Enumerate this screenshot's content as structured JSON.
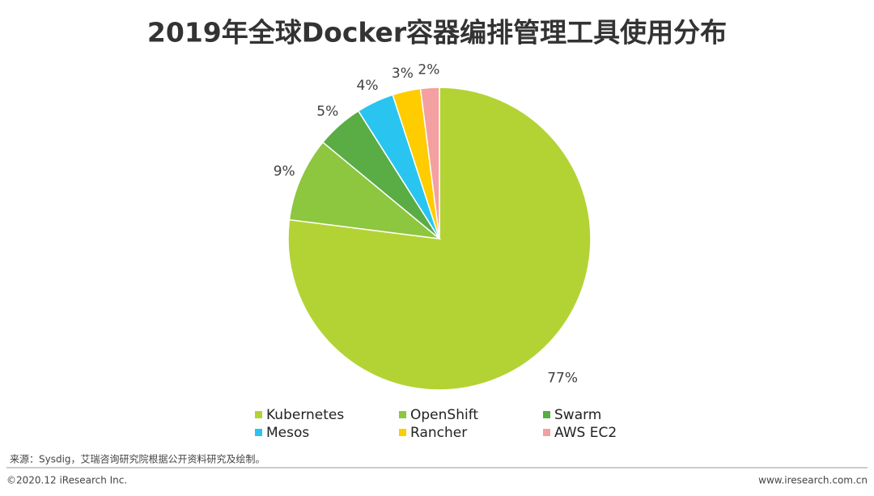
{
  "chart_data": {
    "type": "pie",
    "title": "2019年全球Docker容器编排管理工具使用分布",
    "categories": [
      "Kubernetes",
      "OpenShift",
      "Swarm",
      "Mesos",
      "Rancher",
      "AWS EC2"
    ],
    "values": [
      77,
      9,
      5,
      4,
      3,
      2
    ],
    "value_labels": [
      "77%",
      "9%",
      "5%",
      "4%",
      "3%",
      "2%"
    ],
    "colors": [
      "#b3d335",
      "#8dc63f",
      "#5aac44",
      "#29c5f0",
      "#ffcc00",
      "#f4a0a0"
    ],
    "legend": "bottom"
  },
  "footer": {
    "source": "来源：Sysdig，艾瑞咨询研究院根据公开资料研究及绘制。",
    "copyright": "©2020.12 iResearch Inc.",
    "website": "www.iresearch.com.cn"
  }
}
